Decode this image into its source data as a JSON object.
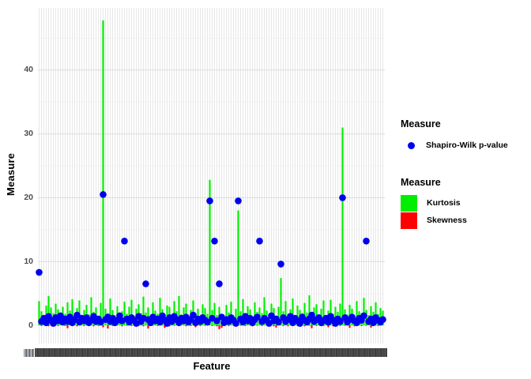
{
  "chart_data": {
    "type": "bar",
    "subtype": "overlaid bars with scatter points (ggplot-style)",
    "title": "",
    "xlabel": "Feature",
    "ylabel": "Measure",
    "ylim": [
      -3,
      50
    ],
    "y_major_ticks": [
      0,
      10,
      20,
      30,
      40
    ],
    "y_minor_ticks": [
      5,
      15,
      25,
      35,
      45
    ],
    "grid": "light gray on white panel, one vertical gridline per feature",
    "n_features": 146,
    "x_tick_labels_overlapping_illegible": true,
    "series": [
      {
        "name": "Kurtosis",
        "type": "bar",
        "color": "#00ee00",
        "values": [
          3.8,
          2.2,
          1.6,
          3.1,
          4.6,
          2.8,
          1.9,
          3.4,
          2.5,
          1.4,
          2.9,
          1.8,
          3.6,
          2.3,
          4.1,
          1.6,
          2.7,
          3.9,
          1.3,
          2.4,
          3.2,
          1.7,
          4.4,
          2.1,
          2.8,
          1.5,
          3.5,
          47.8,
          2.6,
          1.9,
          4.2,
          2.4,
          1.6,
          3.0,
          0.6,
          2.2,
          3.7,
          1.8,
          2.9,
          4.0,
          1.5,
          2.6,
          3.3,
          1.9,
          4.5,
          2.0,
          2.8,
          1.4,
          3.6,
          2.3,
          1.8,
          4.3,
          2.5,
          1.6,
          3.1,
          2.9,
          1.3,
          3.8,
          2.2,
          4.6,
          1.7,
          2.8,
          3.4,
          1.5,
          2.4,
          3.9,
          1.9,
          2.6,
          1.2,
          3.3,
          2.7,
          1.8,
          22.8,
          2.4,
          3.5,
          1.6,
          2.9,
          0.8,
          0.6,
          3.2,
          2.0,
          3.7,
          1.5,
          2.6,
          18.0,
          2.2,
          4.1,
          1.7,
          3.0,
          2.5,
          1.4,
          3.6,
          2.1,
          2.8,
          1.9,
          4.4,
          2.3,
          1.6,
          3.4,
          2.7,
          1.5,
          2.9,
          7.4,
          2.2,
          3.8,
          1.8,
          2.5,
          4.2,
          1.6,
          3.1,
          2.4,
          1.9,
          3.5,
          2.0,
          4.7,
          1.5,
          2.8,
          3.3,
          1.7,
          2.6,
          3.9,
          1.6,
          2.3,
          4.0,
          1.8,
          2.9,
          2.1,
          3.4,
          31.0,
          2.5,
          1.7,
          3.2,
          2.6,
          1.4,
          3.8,
          2.2,
          1.9,
          4.3,
          2.4,
          1.6,
          3.0,
          2.1,
          3.6,
          1.8,
          2.7,
          2.3
        ]
      },
      {
        "name": "Skewness",
        "type": "bar",
        "color": "#ff0000",
        "values": [
          0.1,
          -0.1,
          0.2,
          0.05,
          -0.15,
          0.15,
          -0.05,
          0.2,
          -0.1,
          0.1,
          0.15,
          -0.1,
          -0.45,
          0.1,
          -0.05,
          0.2,
          -0.15,
          0.1,
          0.05,
          -0.1,
          0.2,
          -0.05,
          0.1,
          -0.15,
          0.15,
          -0.1,
          0.05,
          -0.3,
          0.1,
          -0.5,
          0.15,
          -0.1,
          0.2,
          0.05,
          0.85,
          -0.15,
          0.1,
          -0.05,
          0.2,
          -0.1,
          0.1,
          0.15,
          -0.1,
          0.05,
          -0.15,
          0.2,
          -0.5,
          0.1,
          -0.05,
          0.15,
          -0.1,
          0.2,
          0.05,
          -0.4,
          0.1,
          -0.15,
          0.15,
          -0.05,
          0.2,
          -0.1,
          0.1,
          0.05,
          -0.15,
          0.2,
          -0.1,
          0.15,
          -0.3,
          0.05,
          -0.1,
          0.2,
          -0.05,
          0.1,
          0.15,
          -0.1,
          0.05,
          -0.15,
          -0.6,
          -0.4,
          0.9,
          0.1,
          -0.1,
          0.2,
          0.05,
          -0.15,
          0.1,
          -0.05,
          0.15,
          -0.1,
          0.2,
          0.05,
          -0.15,
          0.1,
          -0.05,
          0.2,
          -0.1,
          0.15,
          0.05,
          -0.1,
          0.2,
          -0.15,
          -0.35,
          0.1,
          0.05,
          -0.1,
          0.2,
          -0.15,
          0.1,
          -0.05,
          0.15,
          -0.1,
          0.2,
          0.05,
          -0.15,
          0.1,
          -0.05,
          -0.45,
          0.15,
          -0.1,
          0.2,
          0.05,
          -0.1,
          0.15,
          -0.3,
          0.1,
          -0.15,
          0.05,
          0.2,
          -0.1,
          0.1,
          -0.05,
          0.15,
          -0.4,
          0.1,
          -0.15,
          0.05,
          0.2,
          -0.1,
          0.15,
          -0.05,
          0.1,
          -0.35,
          0.1,
          0.2,
          -0.1,
          0.05,
          0.15
        ]
      },
      {
        "name": "Shapiro-Wilk p-value",
        "type": "scatter",
        "color": "#0000ee",
        "values": [
          8.3,
          0.6,
          1.1,
          0.4,
          1.4,
          0.8,
          0.3,
          1.2,
          0.7,
          1.5,
          0.5,
          1.0,
          0.6,
          1.3,
          0.4,
          0.9,
          1.6,
          0.5,
          1.1,
          0.7,
          1.2,
          0.4,
          0.8,
          1.4,
          0.6,
          1.0,
          0.5,
          20.5,
          0.9,
          1.3,
          0.6,
          1.1,
          0.4,
          0.8,
          1.5,
          0.7,
          13.2,
          1.0,
          0.5,
          1.2,
          0.8,
          0.3,
          1.4,
          0.6,
          1.1,
          6.5,
          0.9,
          0.4,
          1.3,
          0.7,
          1.0,
          0.5,
          1.5,
          0.8,
          0.3,
          1.2,
          0.6,
          1.4,
          0.9,
          0.4,
          1.1,
          0.7,
          1.3,
          0.5,
          0.9,
          1.6,
          0.4,
          1.0,
          0.6,
          1.2,
          0.8,
          0.5,
          19.5,
          1.1,
          13.2,
          0.7,
          6.5,
          1.3,
          0.4,
          0.9,
          0.6,
          1.2,
          0.8,
          0.3,
          19.5,
          1.0,
          0.5,
          1.4,
          0.7,
          1.1,
          0.4,
          0.9,
          1.3,
          13.2,
          0.6,
          1.1,
          0.8,
          0.3,
          1.5,
          0.7,
          1.0,
          0.5,
          9.6,
          1.2,
          0.6,
          0.9,
          1.4,
          0.4,
          1.1,
          0.7,
          0.3,
          1.3,
          0.8,
          0.5,
          1.0,
          1.6,
          0.6,
          0.9,
          1.2,
          0.4,
          0.7,
          1.1,
          0.5,
          1.4,
          0.8,
          0.3,
          1.0,
          0.6,
          20.0,
          1.2,
          0.5,
          0.9,
          1.3,
          0.7,
          0.4,
          1.1,
          0.8,
          1.5,
          13.2,
          0.6,
          1.0,
          0.4,
          1.2,
          0.8,
          0.5,
          0.9
        ]
      }
    ]
  },
  "y_axis": {
    "title": "Measure",
    "tick_labels": [
      "0",
      "10",
      "20",
      "30",
      "40"
    ]
  },
  "x_axis": {
    "title": "Feature"
  },
  "legend_shape": {
    "title": "Measure",
    "items": [
      {
        "label": "Shapiro-Wilk p-value",
        "color": "#0000ee",
        "marker": "circle"
      }
    ]
  },
  "legend_fill": {
    "title": "Measure",
    "items": [
      {
        "label": "Kurtosis",
        "color": "#00ee00",
        "marker": "square"
      },
      {
        "label": "Skewness",
        "color": "#ff0000",
        "marker": "square"
      }
    ]
  },
  "colors": {
    "kurtosis": "#00ee00",
    "skewness": "#ff0000",
    "shapiro_points": "#0000ee",
    "grid_vertical": "#e7e7e7",
    "grid_major": "#dcdcdc",
    "grid_minor": "#f0f0f0",
    "axis_text": "#4d4d4d",
    "x_label_strip": "#4a4a4a"
  }
}
